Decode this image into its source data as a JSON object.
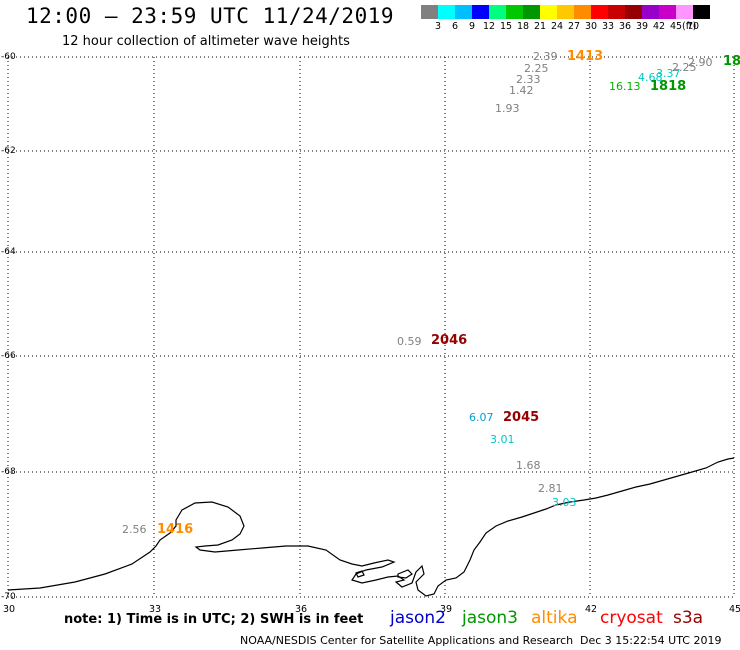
{
  "title": "12:00 – 23:59 UTC 11/24/2019",
  "subtitle": "12 hour collection of altimeter wave heights",
  "colorbar": {
    "unit": "(ft)",
    "colors": [
      "#808080",
      "#00ffff",
      "#00bfff",
      "#0000ff",
      "#00ff7f",
      "#00c800",
      "#009600",
      "#ffff00",
      "#ffc800",
      "#ff8c00",
      "#ff0000",
      "#c80000",
      "#960000",
      "#9600c8",
      "#c800c8",
      "#ff96ff",
      "#000000"
    ],
    "ticks": [
      "3",
      "6",
      "9",
      "12",
      "15",
      "18",
      "21",
      "24",
      "27",
      "30",
      "33",
      "36",
      "39",
      "42",
      "45",
      "70"
    ]
  },
  "axes": {
    "lat_labels": [
      "-60",
      "-62",
      "-64",
      "-66",
      "-68",
      "-70"
    ],
    "lon_labels": [
      "30",
      "33",
      "36",
      "39",
      "42",
      "45"
    ]
  },
  "observations": [
    {
      "value": "2.39",
      "color": "#808080"
    },
    {
      "value": "1413",
      "color": "#ff8c00",
      "kind": "time"
    },
    {
      "value": "2.25",
      "color": "#808080"
    },
    {
      "value": "2.33",
      "color": "#808080"
    },
    {
      "value": "1.42",
      "color": "#808080"
    },
    {
      "value": "1.93",
      "color": "#808080"
    },
    {
      "value": "2.90",
      "color": "#808080"
    },
    {
      "value": "2.25",
      "color": "#808080"
    },
    {
      "value": "3.37",
      "color": "#00c8c8"
    },
    {
      "value": "4.68",
      "color": "#00c8c8"
    },
    {
      "value": "16.13",
      "color": "#00b400"
    },
    {
      "value": "1818",
      "color": "#009600",
      "kind": "time"
    },
    {
      "value": "18",
      "color": "#009600",
      "kind": "time"
    },
    {
      "value": "0.59",
      "color": "#808080"
    },
    {
      "value": "2046",
      "color": "#960000",
      "kind": "time"
    },
    {
      "value": "6.07",
      "color": "#00a0d0"
    },
    {
      "value": "2045",
      "color": "#960000",
      "kind": "time"
    },
    {
      "value": "3.01",
      "color": "#00c8c8"
    },
    {
      "value": "1.68",
      "color": "#808080"
    },
    {
      "value": "2.81",
      "color": "#808080"
    },
    {
      "value": "3.03",
      "color": "#00c8c8"
    },
    {
      "value": "2.56",
      "color": "#808080"
    },
    {
      "value": "1416",
      "color": "#ff8c00",
      "kind": "time"
    }
  ],
  "note": "note: 1) Time is in UTC; 2) SWH is in feet",
  "satellites": [
    {
      "name": "jason2",
      "color": "#0000c8"
    },
    {
      "name": "jason3",
      "color": "#009600"
    },
    {
      "name": "altika",
      "color": "#ff8c00"
    },
    {
      "name": "cryosat",
      "color": "#ff0000"
    },
    {
      "name": "s3a",
      "color": "#960000"
    }
  ],
  "credit": "NOAA/NESDIS Center for Satellite Applications and Research",
  "generated": "Dec  3 15:22:54 UTC 2019"
}
